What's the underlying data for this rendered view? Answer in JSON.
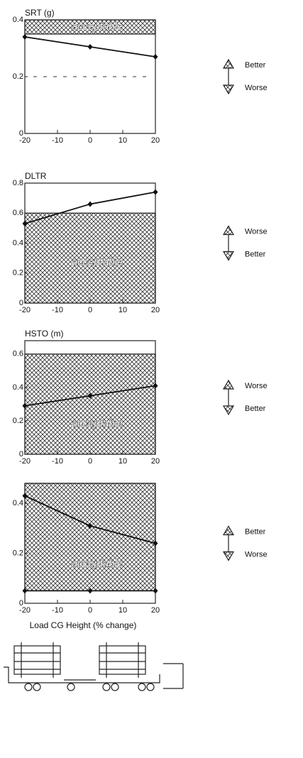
{
  "chart_data": [
    {
      "type": "line",
      "title": "SRT (g)",
      "x": [
        -20,
        0,
        20
      ],
      "series": [
        {
          "values": [
            0.34,
            0.305,
            0.27
          ]
        }
      ],
      "xlim": [
        -20,
        20
      ],
      "xticks": [
        -20,
        -10,
        0,
        10,
        20
      ],
      "ylim": [
        0,
        0.4
      ],
      "yticks": [
        0,
        0.2,
        0.4
      ],
      "acceptable_range": [
        0.35,
        0.4
      ],
      "annotation": "acceptable",
      "reference_line": 0.2,
      "arrow_labels": [
        "Better",
        "Worse"
      ]
    },
    {
      "type": "line",
      "title": "DLTR",
      "x": [
        -20,
        0,
        20
      ],
      "series": [
        {
          "values": [
            0.53,
            0.66,
            0.74
          ]
        }
      ],
      "xlim": [
        -20,
        20
      ],
      "xticks": [
        -20,
        -10,
        0,
        10,
        20
      ],
      "ylim": [
        0,
        0.8
      ],
      "yticks": [
        0,
        0.2,
        0.4,
        0.6,
        0.8
      ],
      "acceptable_range": [
        0,
        0.6
      ],
      "annotation": "acceptable",
      "arrow_labels": [
        "Worse",
        "Better"
      ]
    },
    {
      "type": "line",
      "title": "HSTO (m)",
      "x": [
        -20,
        0,
        20
      ],
      "series": [
        {
          "values": [
            0.29,
            0.35,
            0.41
          ]
        }
      ],
      "xlim": [
        -20,
        20
      ],
      "xticks": [
        -20,
        -10,
        0,
        10,
        20
      ],
      "ylim": [
        0,
        0.68
      ],
      "yticks": [
        0,
        0.2,
        0.4,
        0.6
      ],
      "acceptable_range": [
        0,
        0.6
      ],
      "annotation": "acceptable",
      "arrow_labels": [
        "Worse",
        "Better"
      ]
    },
    {
      "type": "line",
      "x": [
        -20,
        0,
        20
      ],
      "series": [
        {
          "values": [
            0.43,
            0.31,
            0.24
          ]
        },
        {
          "values": [
            0.05,
            0.05,
            0.05
          ]
        }
      ],
      "xlim": [
        -20,
        20
      ],
      "xticks": [
        -20,
        -10,
        0,
        10,
        20
      ],
      "ylim": [
        0,
        0.48
      ],
      "yticks": [
        0,
        0.2,
        0.4
      ],
      "acceptable_range": [
        0.05,
        0.48
      ],
      "annotation": "acceptable",
      "arrow_labels": [
        "Better",
        "Worse"
      ],
      "x_label": "Load CG Height (% change)"
    }
  ]
}
